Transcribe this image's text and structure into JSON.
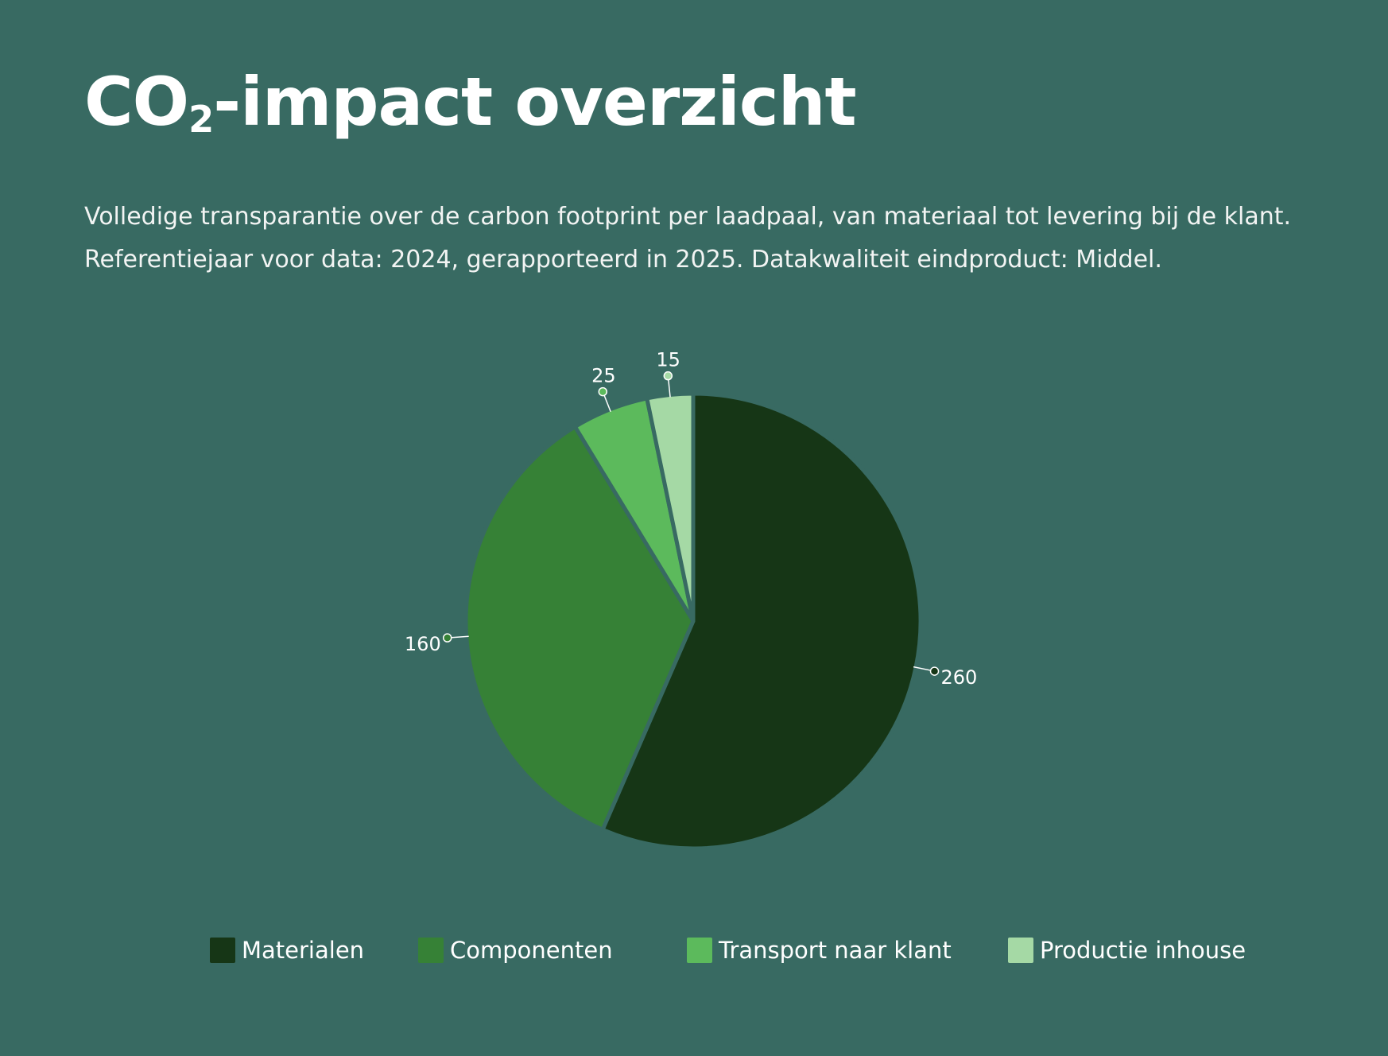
{
  "header": {
    "title_main": "CO",
    "title_sub": "2",
    "title_rest": "-impact overzicht",
    "subtitle": "Volledige transparantie over de carbon footprint per laadpaal, van materiaal tot levering bij de klant. Referentiejaar voor data: 2024, gerapporteerd in 2025. Datakwaliteit eindproduct: Middel."
  },
  "colors": {
    "background": "#386a62",
    "slice_border": "#386a62"
  },
  "chart_data": {
    "type": "pie",
    "title": "",
    "categories": [
      "Materialen",
      "Componenten",
      "Transport naar klant",
      "Productie inhouse"
    ],
    "values": [
      260,
      160,
      25,
      15
    ],
    "data_labels": [
      "260",
      "160",
      "25",
      "15"
    ],
    "colors": [
      "#163616",
      "#368136",
      "#5cba5c",
      "#a5d9a5"
    ],
    "start_angle": "12 o'clock",
    "direction": "clockwise",
    "legend_position": "bottom"
  }
}
